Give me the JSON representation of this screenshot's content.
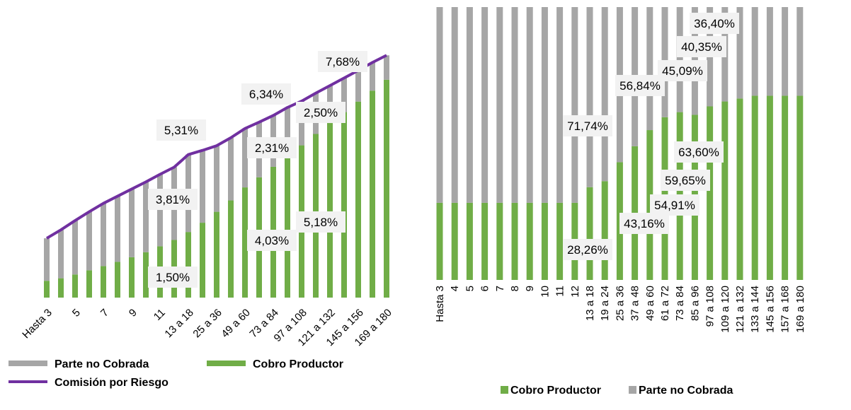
{
  "chart_data": [
    {
      "type": "bar",
      "stacked": true,
      "categories": [
        "Hasta 3",
        "4",
        "5",
        "6",
        "7",
        "8",
        "9",
        "10",
        "11",
        "12",
        "13 a 18",
        "19 a 24",
        "25 a 36",
        "37 a 48",
        "49 a 60",
        "61 a 72",
        "73 a 84",
        "85 a 96",
        "97 a 108",
        "109 a 120",
        "121 a 132",
        "133 a 144",
        "145 a 156",
        "157 a 168",
        "169 a 180"
      ],
      "shown_tick_labels": [
        "Hasta 3",
        "5",
        "7",
        "9",
        "11",
        "13 a 18",
        "25 a 36",
        "49 a 60",
        "73 a 84",
        "97 a 108",
        "121 a 132",
        "145 a 156",
        "169 a 180"
      ],
      "series": [
        {
          "name": "Parte no Cobrada",
          "color": "#a6a6a6",
          "values": [
            1.01,
            1.15,
            1.28,
            1.39,
            1.49,
            1.56,
            1.62,
            1.67,
            1.71,
            1.73,
            1.84,
            1.72,
            1.57,
            1.49,
            1.4,
            1.31,
            1.22,
            1.14,
            1.05,
            0.97,
            0.89,
            0.81,
            0.74,
            0.67,
            0.58
          ]
        },
        {
          "name": "Cobro Productor",
          "color": "#70ad47",
          "values": [
            0.4,
            0.46,
            0.55,
            0.65,
            0.75,
            0.85,
            0.96,
            1.08,
            1.22,
            1.37,
            1.56,
            1.78,
            2.04,
            2.31,
            2.62,
            2.86,
            3.11,
            3.38,
            3.62,
            3.89,
            4.15,
            4.41,
            4.66,
            4.92,
            5.18
          ]
        },
        {
          "name": "Comisión por Riesgo",
          "type": "line",
          "color": "#7030a0",
          "values": [
            1.41,
            1.61,
            1.83,
            2.04,
            2.24,
            2.41,
            2.58,
            2.75,
            2.93,
            3.1,
            3.4,
            3.5,
            3.61,
            3.8,
            4.02,
            4.17,
            4.33,
            4.52,
            4.67,
            4.86,
            5.04,
            5.22,
            5.4,
            5.59,
            5.76
          ]
        }
      ],
      "annotations": [
        "5,31%",
        "6,34%",
        "7,68%",
        "3,81%",
        "2,31%",
        "2,50%",
        "1,50%",
        "4,03%",
        "5,18%"
      ],
      "legend": {
        "items": [
          "Parte no Cobrada",
          "Cobro Productor",
          "Comisión por Riesgo"
        ],
        "position": "bottom"
      },
      "ylim": [
        0,
        6.1
      ]
    },
    {
      "type": "bar",
      "stacked": true,
      "percent": true,
      "categories": [
        "Hasta 3",
        "4",
        "5",
        "6",
        "7",
        "8",
        "9",
        "10",
        "11",
        "12",
        "13 a 18",
        "19 a 24",
        "25 a 36",
        "37 a 48",
        "49 a 60",
        "61 a 72",
        "73 a 84",
        "85 a 96",
        "97 a 108",
        "109 a 120",
        "121 a 132",
        "133 a 144",
        "145 a 156",
        "157 a 168",
        "169 a 180"
      ],
      "series": [
        {
          "name": "Cobro Productor",
          "color": "#70ad47",
          "values": [
            28.26,
            28.26,
            28.26,
            28.26,
            28.26,
            28.26,
            28.26,
            28.26,
            28.26,
            28.26,
            34.0,
            36.2,
            43.16,
            49.0,
            54.91,
            59.65,
            61.5,
            60.5,
            63.6,
            65.4,
            66.5,
            67.5,
            67.5,
            67.5,
            67.5
          ]
        },
        {
          "name": "Parte no Cobrada",
          "color": "#a6a6a6",
          "values": [
            71.74,
            71.74,
            71.74,
            71.74,
            71.74,
            71.74,
            71.74,
            71.74,
            71.74,
            71.74,
            66.0,
            63.8,
            56.84,
            51.0,
            45.09,
            40.35,
            38.5,
            39.5,
            36.4,
            34.6,
            33.5,
            32.5,
            32.5,
            32.5,
            32.5
          ]
        }
      ],
      "annotations": [
        "36,40%",
        "40,35%",
        "45,09%",
        "56,84%",
        "71,74%",
        "63,60%",
        "59,65%",
        "54,91%",
        "43,16%",
        "28,26%"
      ],
      "legend": {
        "items": [
          "Cobro Productor",
          "Parte no Cobrada"
        ],
        "position": "bottom"
      },
      "ylim": [
        0,
        100
      ]
    }
  ]
}
